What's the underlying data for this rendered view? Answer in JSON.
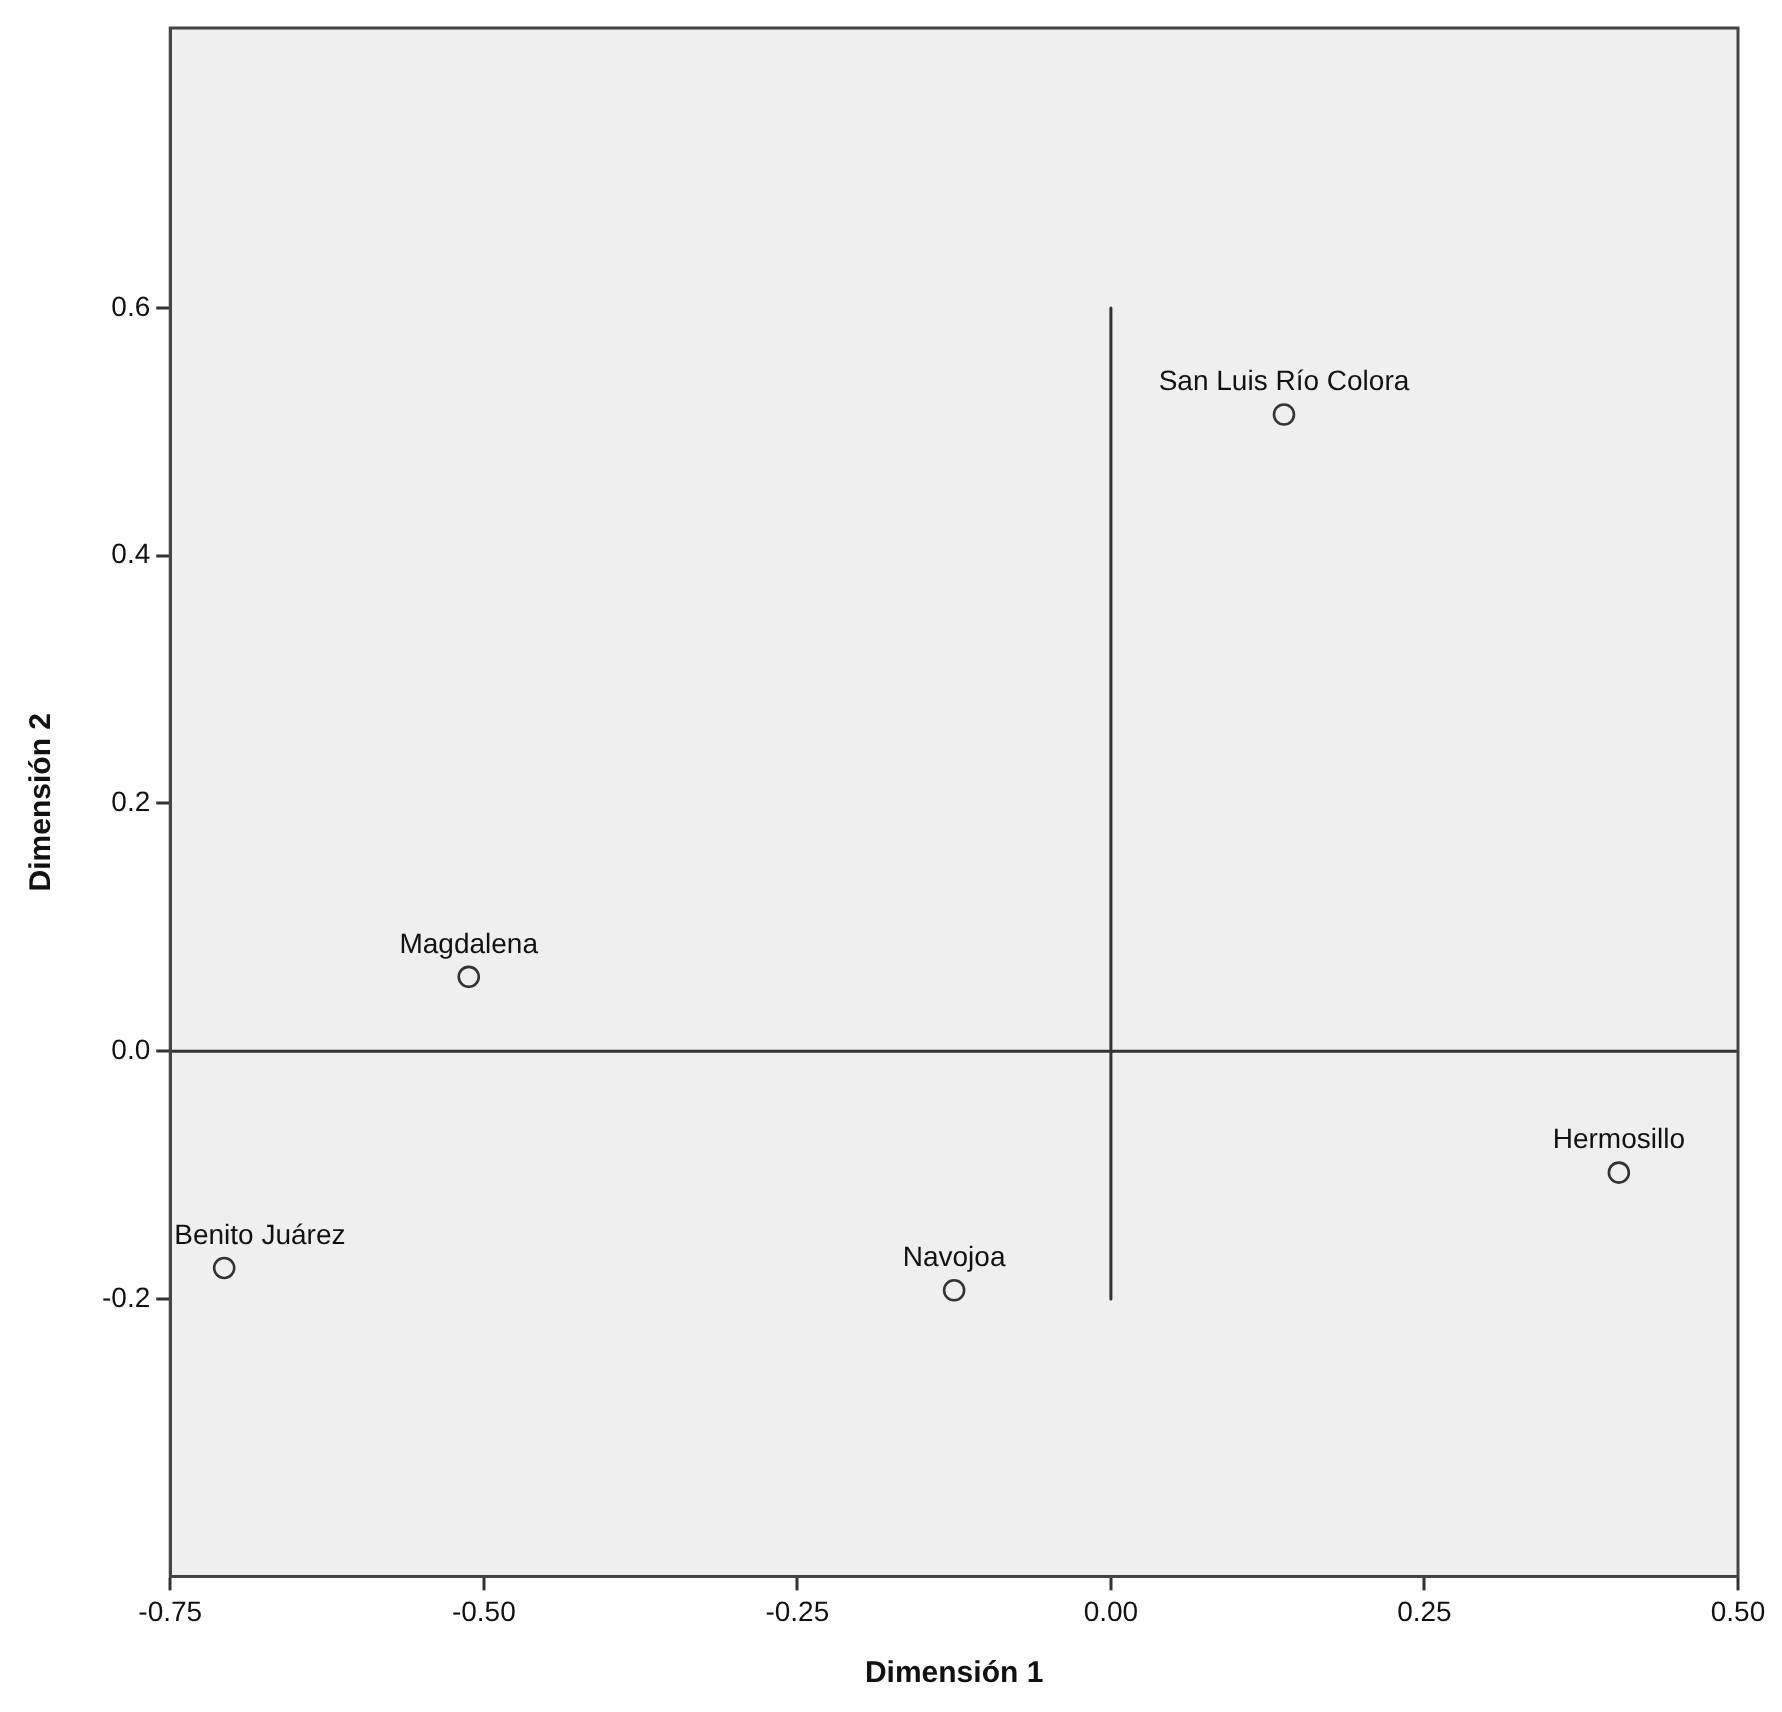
{
  "chart_data": {
    "type": "scatter",
    "xlabel": "Dimensión 1",
    "ylabel": "Dimensión 2",
    "xlim": [
      -0.75,
      0.5
    ],
    "xticks": [
      {
        "value": -0.75,
        "label": "-0.75"
      },
      {
        "value": -0.5,
        "label": "-0.50"
      },
      {
        "value": -0.25,
        "label": "-0.25"
      },
      {
        "value": 0,
        "label": "0.00"
      },
      {
        "value": 0.25,
        "label": "0.25"
      },
      {
        "value": 0.5,
        "label": "0.50"
      }
    ],
    "ylim": [
      -0.424,
      0.826
    ],
    "yticks": [
      {
        "value": -0.2,
        "label": "-0.2"
      },
      {
        "value": 0,
        "label": "0.0"
      },
      {
        "value": 0.2,
        "label": "0.2"
      },
      {
        "value": 0.4,
        "label": "0.4"
      },
      {
        "value": 0.6,
        "label": "0.6"
      }
    ],
    "grid": false,
    "legend": false,
    "marker": "circle",
    "series": [
      {
        "type": "scatter",
        "color": "#333333",
        "x": [
          0.138,
          -0.512,
          -0.707,
          -0.125,
          0.405
        ],
        "values": [
          0.514,
          0.06,
          -0.175,
          -0.193,
          -0.098
        ]
      },
      {
        "type": "line",
        "color": "#333333",
        "marker": "none",
        "x": [
          0,
          0
        ],
        "values": [
          0.6,
          -0.2
        ]
      }
    ],
    "ref_lines": [
      {
        "axis": "y",
        "value": 0,
        "color": "#333333"
      }
    ],
    "annotations": [
      {
        "text": "San Luis Río Colora",
        "x": 0.138,
        "y": 0.514
      },
      {
        "text": "Magdalena",
        "x": -0.512,
        "y": 0.06
      },
      {
        "text": "Benito Juárez",
        "x": -0.707,
        "y": -0.175
      },
      {
        "text": "Navojoa",
        "x": -0.125,
        "y": -0.193
      },
      {
        "text": "Hermosillo",
        "x": 0.405,
        "y": -0.098
      }
    ]
  }
}
